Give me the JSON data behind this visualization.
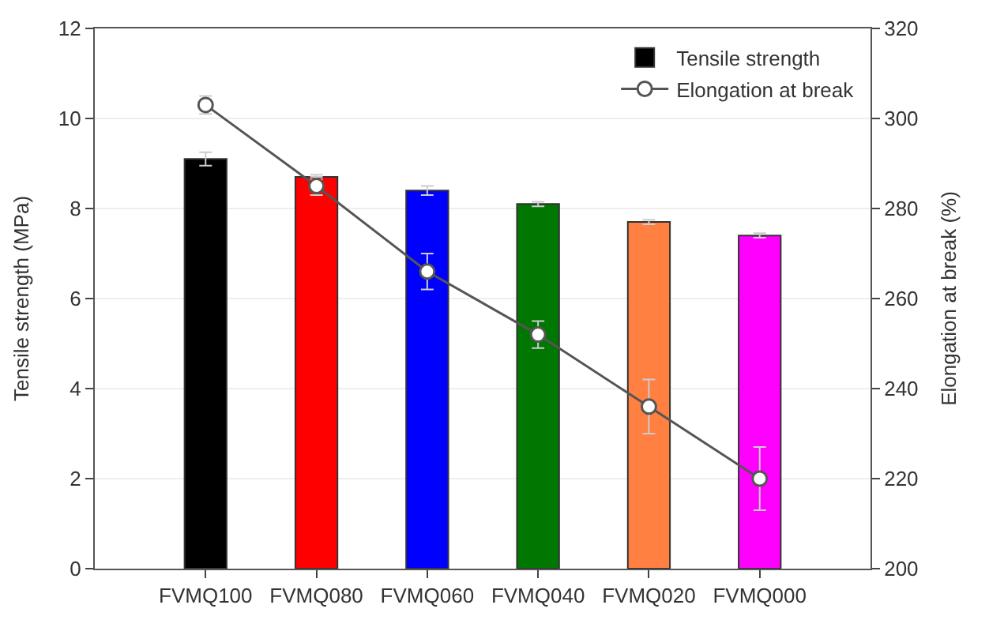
{
  "chart_data": {
    "type": "bar",
    "categories": [
      "FVMQ100",
      "FVMQ080",
      "FVMQ060",
      "FVMQ040",
      "FVMQ020",
      "FVMQ000"
    ],
    "ylabel": "Tensile strength (MPa)",
    "y2label": "Elongation at break (%)",
    "ylim": [
      0,
      12
    ],
    "yticks": [
      0,
      2,
      4,
      6,
      8,
      10,
      12
    ],
    "y2lim": [
      200,
      320
    ],
    "y2ticks": [
      200,
      220,
      240,
      260,
      280,
      300,
      320
    ],
    "grid": "y",
    "legend": "top right",
    "series": [
      {
        "name": "Tensile strength",
        "color": "#000000",
        "colors": [
          "#000000",
          "#ff0000",
          "#0000ff",
          "#007700",
          "#ff8040",
          "#ff00ff"
        ],
        "values": [
          9.1,
          8.7,
          8.4,
          8.1,
          7.7,
          7.4
        ],
        "errors": [
          0.15,
          0.05,
          0.1,
          0.05,
          0.05,
          0.05
        ]
      },
      {
        "name": "Elongation at break",
        "type": "line",
        "axis": "y2",
        "color": "#555555",
        "marker": "circle",
        "values": [
          303,
          285,
          266,
          252,
          236,
          220
        ],
        "errors": [
          2,
          2,
          4,
          3,
          6,
          7
        ]
      }
    ]
  }
}
